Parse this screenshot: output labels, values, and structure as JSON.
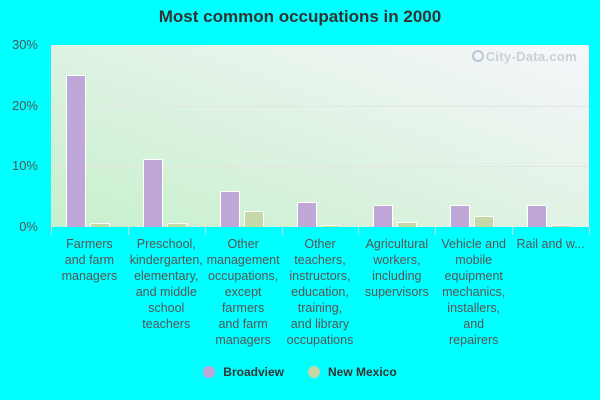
{
  "chart_data": {
    "type": "bar",
    "title": "Most common occupations in 2000",
    "xlabel": "",
    "ylabel": "",
    "ylim": [
      0,
      30
    ],
    "yticks": [
      "0%",
      "10%",
      "20%",
      "30%"
    ],
    "grid": true,
    "legend_position": "bottom",
    "categories": [
      "Farmers\nand farm\nmanagers",
      "Preschool,\nkindergarten,\nelementary,\nand middle\nschool\nteachers",
      "Other\nmanagement\noccupations,\nexcept\nfarmers\nand farm\nmanagers",
      "Other\nteachers,\ninstructors,\neducation,\ntraining,\nand library\noccupations",
      "Agricultural\nworkers,\nincluding\nsupervisors",
      "Vehicle and\nmobile\nequipment\nmechanics,\ninstallers,\nand\nrepairers",
      "Rail and w..."
    ],
    "series": [
      {
        "name": "Broadview",
        "color": "#bfa8d8",
        "values": [
          25.0,
          11.2,
          5.9,
          4.2,
          3.6,
          3.6,
          3.6
        ]
      },
      {
        "name": "New Mexico",
        "color": "#c5d8a8",
        "values": [
          0.6,
          0.6,
          2.6,
          0.3,
          0.8,
          1.8,
          0.2
        ]
      }
    ],
    "watermark": "City-Data.com"
  }
}
